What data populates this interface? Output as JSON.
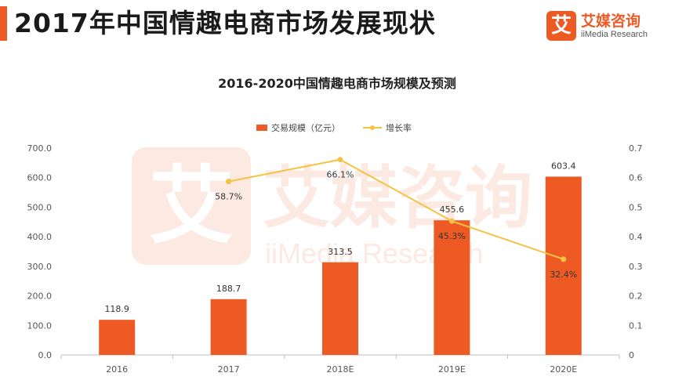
{
  "header": {
    "title": "2017年中国情趣电商市场发展现状",
    "brand_mark": "艾",
    "brand_name": "艾媒咨询",
    "brand_en": "iiMedia Research",
    "watermark_en": "iiMedia Research",
    "accent_color": "#ee5a24"
  },
  "chart_data": {
    "type": "bar",
    "title": "2016-2020中国情趣电商市场规模及预测",
    "categories": [
      "2016",
      "2017",
      "2018E",
      "2019E",
      "2020E"
    ],
    "series": [
      {
        "name": "交易规模（亿元）",
        "type": "bar",
        "axis": "left",
        "color": "#ee5a24",
        "values": [
          118.9,
          188.7,
          313.5,
          455.6,
          603.4
        ],
        "labels": [
          "118.9",
          "188.7",
          "313.5",
          "455.6",
          "603.4"
        ]
      },
      {
        "name": "增长率",
        "type": "line",
        "axis": "right",
        "color": "#f5c342",
        "x": [
          "2017",
          "2018E",
          "2019E",
          "2020E"
        ],
        "values": [
          0.587,
          0.661,
          0.453,
          0.324
        ],
        "labels": [
          "58.7%",
          "66.1%",
          "45.3%",
          "32.4%"
        ]
      }
    ],
    "ylim": [
      0,
      700
    ],
    "y2lim": [
      0,
      0.7
    ],
    "yticks": [
      "0.0",
      "100.0",
      "200.0",
      "300.0",
      "400.0",
      "500.0",
      "600.0",
      "700.0"
    ],
    "y2ticks": [
      "0",
      "0.1",
      "0.2",
      "0.3",
      "0.4",
      "0.5",
      "0.6",
      "0.7"
    ],
    "legend_position": "top-center",
    "grid": false
  }
}
